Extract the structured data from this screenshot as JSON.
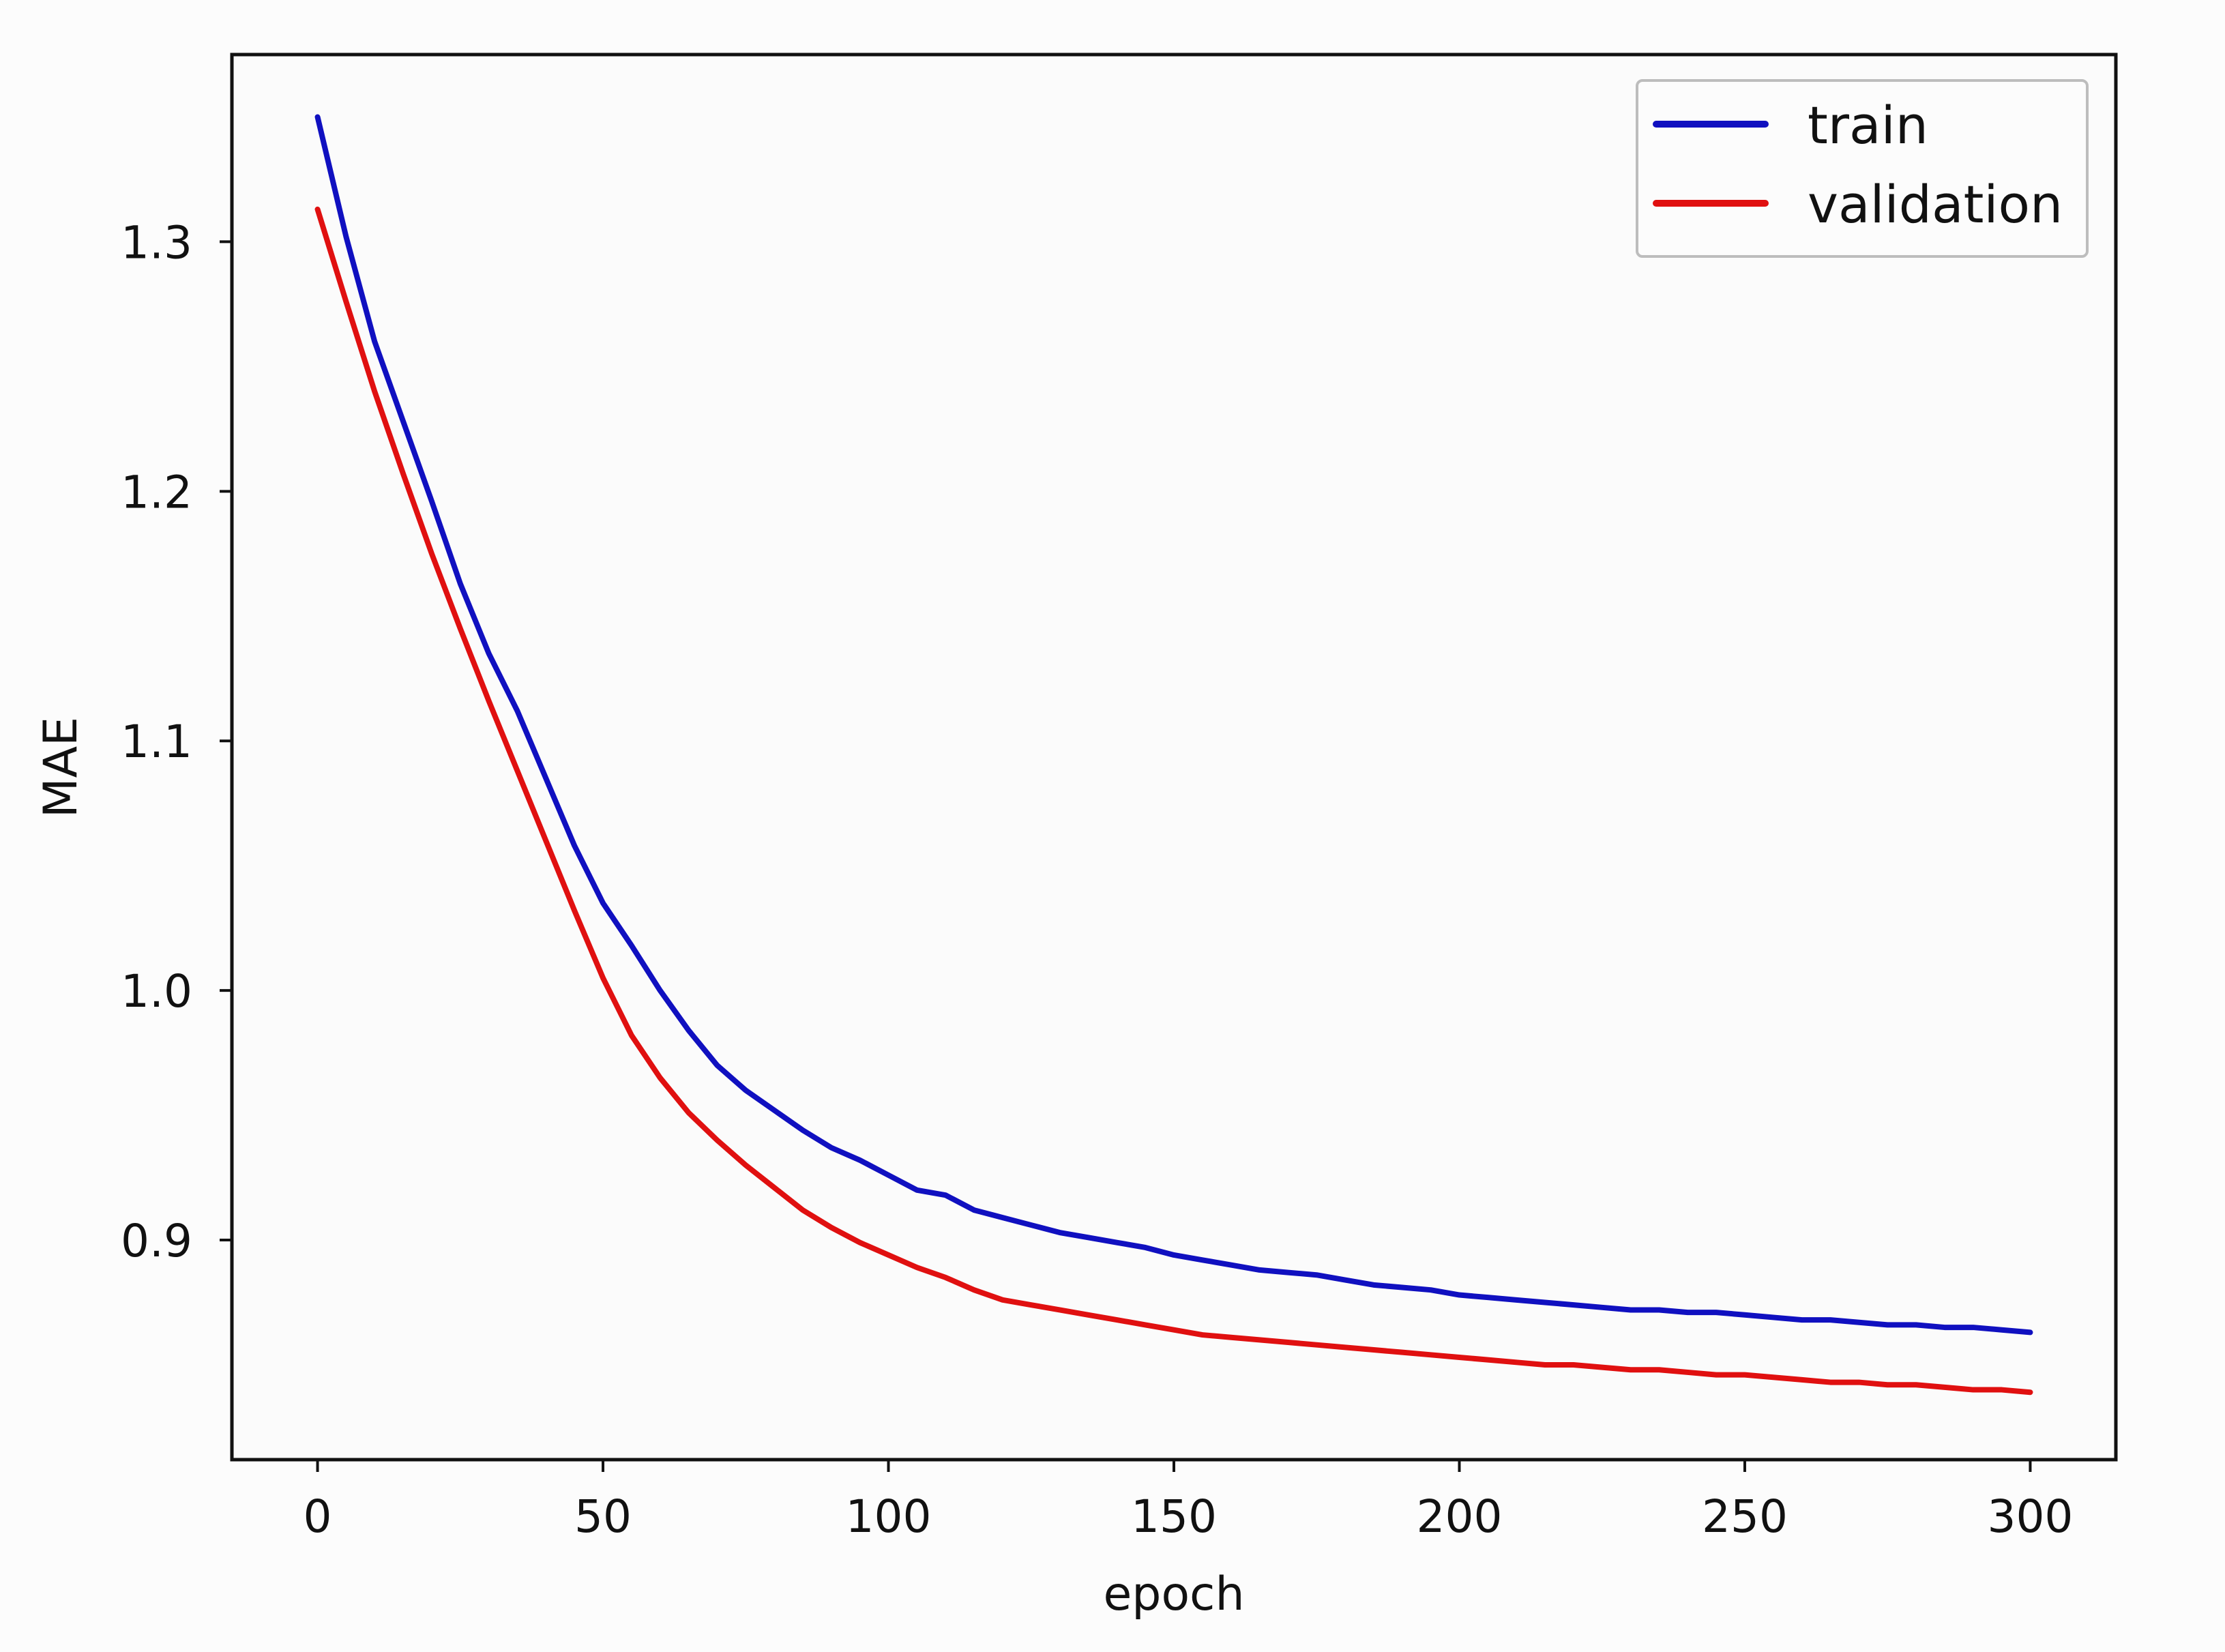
{
  "chart_data": {
    "type": "line",
    "title": "",
    "xlabel": "epoch",
    "ylabel": "MAE",
    "xlim": [
      -15,
      315
    ],
    "ylim": [
      0.812,
      1.375
    ],
    "x_ticks": [
      0,
      50,
      100,
      150,
      200,
      250,
      300
    ],
    "x_tick_labels": [
      "0",
      "50",
      "100",
      "150",
      "200",
      "250",
      "300"
    ],
    "y_ticks": [
      0.9,
      1.0,
      1.1,
      1.2,
      1.3
    ],
    "y_tick_labels": [
      "0.9",
      "1.0",
      "1.1",
      "1.2",
      "1.3"
    ],
    "grid": false,
    "legend": {
      "position": "top-right",
      "entries": [
        "train",
        "validation"
      ]
    },
    "series": [
      {
        "name": "train",
        "color": "#1010c0",
        "x": [
          0,
          5,
          10,
          15,
          20,
          25,
          30,
          35,
          40,
          45,
          50,
          55,
          60,
          65,
          70,
          75,
          80,
          85,
          90,
          95,
          100,
          105,
          110,
          115,
          120,
          125,
          130,
          135,
          140,
          145,
          150,
          155,
          160,
          165,
          170,
          175,
          180,
          185,
          190,
          195,
          200,
          205,
          210,
          215,
          220,
          225,
          230,
          235,
          240,
          245,
          250,
          255,
          260,
          265,
          270,
          275,
          280,
          285,
          290,
          295,
          300
        ],
        "y": [
          1.35,
          1.302,
          1.26,
          1.228,
          1.196,
          1.163,
          1.135,
          1.112,
          1.085,
          1.058,
          1.035,
          1.018,
          1.0,
          0.984,
          0.97,
          0.96,
          0.952,
          0.944,
          0.937,
          0.932,
          0.926,
          0.92,
          0.918,
          0.912,
          0.909,
          0.906,
          0.903,
          0.901,
          0.899,
          0.897,
          0.894,
          0.892,
          0.89,
          0.888,
          0.887,
          0.886,
          0.884,
          0.882,
          0.881,
          0.88,
          0.878,
          0.877,
          0.876,
          0.875,
          0.874,
          0.873,
          0.872,
          0.872,
          0.871,
          0.871,
          0.87,
          0.869,
          0.868,
          0.868,
          0.867,
          0.866,
          0.866,
          0.865,
          0.865,
          0.864,
          0.863
        ]
      },
      {
        "name": "validation",
        "color": "#e01010",
        "x": [
          0,
          5,
          10,
          15,
          20,
          25,
          30,
          35,
          40,
          45,
          50,
          55,
          60,
          65,
          70,
          75,
          80,
          85,
          90,
          95,
          100,
          105,
          110,
          115,
          120,
          125,
          130,
          135,
          140,
          145,
          150,
          155,
          160,
          165,
          170,
          175,
          180,
          185,
          190,
          195,
          200,
          205,
          210,
          215,
          220,
          225,
          230,
          235,
          240,
          245,
          250,
          255,
          260,
          265,
          270,
          275,
          280,
          285,
          290,
          295,
          300
        ],
        "y": [
          1.313,
          1.276,
          1.24,
          1.207,
          1.175,
          1.145,
          1.116,
          1.088,
          1.06,
          1.032,
          1.005,
          0.982,
          0.965,
          0.951,
          0.94,
          0.93,
          0.921,
          0.912,
          0.905,
          0.899,
          0.894,
          0.889,
          0.885,
          0.88,
          0.876,
          0.874,
          0.872,
          0.87,
          0.868,
          0.866,
          0.864,
          0.862,
          0.861,
          0.86,
          0.859,
          0.858,
          0.857,
          0.856,
          0.855,
          0.854,
          0.853,
          0.852,
          0.851,
          0.85,
          0.85,
          0.849,
          0.848,
          0.848,
          0.847,
          0.846,
          0.846,
          0.845,
          0.844,
          0.843,
          0.843,
          0.842,
          0.842,
          0.841,
          0.84,
          0.84,
          0.839
        ]
      }
    ]
  }
}
